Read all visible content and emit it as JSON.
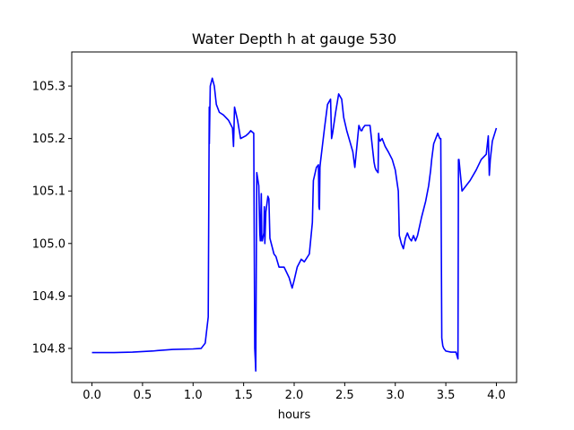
{
  "chart_data": {
    "type": "line",
    "title": "Water Depth h at gauge 530",
    "xlabel": "hours",
    "ylabel": "",
    "xlim": [
      -0.2,
      4.2
    ],
    "ylim": [
      104.735,
      105.365
    ],
    "grid": false,
    "xticks": [
      0.0,
      0.5,
      1.0,
      1.5,
      2.0,
      2.5,
      3.0,
      3.5,
      4.0
    ],
    "xtick_labels": [
      "0.0",
      "0.5",
      "1.0",
      "1.5",
      "2.0",
      "2.5",
      "3.0",
      "3.5",
      "4.0"
    ],
    "yticks": [
      104.8,
      104.9,
      105.0,
      105.1,
      105.2,
      105.3
    ],
    "ytick_labels": [
      "104.8",
      "104.9",
      "105.0",
      "105.1",
      "105.2",
      "105.3"
    ],
    "series": [
      {
        "color": "#0000ff",
        "x": [
          0.0,
          0.2,
          0.4,
          0.6,
          0.65,
          0.8,
          1.0,
          1.08,
          1.12,
          1.15,
          1.16,
          1.161,
          1.17,
          1.19,
          1.21,
          1.23,
          1.26,
          1.3,
          1.35,
          1.39,
          1.4,
          1.41,
          1.44,
          1.47,
          1.52,
          1.55,
          1.57,
          1.6,
          1.61,
          1.615,
          1.62,
          1.63,
          1.65,
          1.66,
          1.665,
          1.675,
          1.68,
          1.685,
          1.7,
          1.705,
          1.71,
          1.72,
          1.74,
          1.75,
          1.76,
          1.8,
          1.82,
          1.85,
          1.9,
          1.95,
          1.98,
          2.0,
          2.03,
          2.07,
          2.1,
          2.15,
          2.18,
          2.19,
          2.22,
          2.24,
          2.245,
          2.25,
          2.255,
          2.26,
          2.3,
          2.33,
          2.36,
          2.37,
          2.38,
          2.41,
          2.44,
          2.47,
          2.49,
          2.52,
          2.55,
          2.58,
          2.6,
          2.64,
          2.66,
          2.67,
          2.68,
          2.7,
          2.75,
          2.79,
          2.8,
          2.81,
          2.83,
          2.835,
          2.84,
          2.85,
          2.87,
          2.9,
          2.93,
          2.97,
          3.0,
          3.03,
          3.04,
          3.06,
          3.08,
          3.1,
          3.12,
          3.14,
          3.16,
          3.18,
          3.2,
          3.22,
          3.26,
          3.3,
          3.33,
          3.35,
          3.36,
          3.37,
          3.38,
          3.42,
          3.44,
          3.45,
          3.46,
          3.47,
          3.48,
          3.5,
          3.55,
          3.6,
          3.62,
          3.625,
          3.63,
          3.66,
          3.7,
          3.74,
          3.8,
          3.85,
          3.9,
          3.92,
          3.93,
          3.94,
          3.96,
          4.0
        ],
        "y": [
          104.792,
          104.792,
          104.793,
          104.795,
          104.796,
          104.798,
          104.799,
          104.8,
          104.81,
          104.86,
          105.26,
          105.19,
          105.3,
          105.315,
          105.3,
          105.265,
          105.25,
          105.245,
          105.235,
          105.22,
          105.185,
          105.26,
          105.235,
          105.2,
          105.205,
          105.21,
          105.215,
          105.21,
          104.8,
          104.78,
          104.757,
          105.135,
          105.11,
          105.02,
          105.005,
          105.095,
          105.005,
          105.005,
          105.02,
          105.07,
          105.0,
          105.06,
          105.09,
          105.085,
          105.01,
          104.98,
          104.975,
          104.955,
          104.955,
          104.935,
          104.915,
          104.93,
          104.955,
          104.97,
          104.965,
          104.98,
          105.04,
          105.12,
          105.145,
          105.15,
          105.07,
          105.065,
          105.145,
          105.155,
          105.22,
          105.265,
          105.275,
          105.2,
          105.21,
          105.25,
          105.285,
          105.275,
          105.24,
          105.215,
          105.195,
          105.175,
          105.145,
          105.225,
          105.215,
          105.215,
          105.22,
          105.225,
          105.225,
          105.155,
          105.145,
          105.14,
          105.135,
          105.21,
          105.2,
          105.195,
          105.2,
          105.185,
          105.175,
          105.16,
          105.14,
          105.1,
          105.015,
          105.0,
          104.99,
          105.01,
          105.02,
          105.01,
          105.005,
          105.015,
          105.005,
          105.015,
          105.05,
          105.08,
          105.11,
          105.14,
          105.16,
          105.175,
          105.19,
          105.21,
          105.2,
          105.2,
          104.82,
          104.805,
          104.8,
          104.795,
          104.793,
          104.793,
          104.78,
          105.16,
          105.16,
          105.1,
          105.11,
          105.12,
          105.14,
          105.16,
          105.17,
          105.205,
          105.13,
          105.16,
          105.195,
          105.22
        ]
      }
    ]
  }
}
